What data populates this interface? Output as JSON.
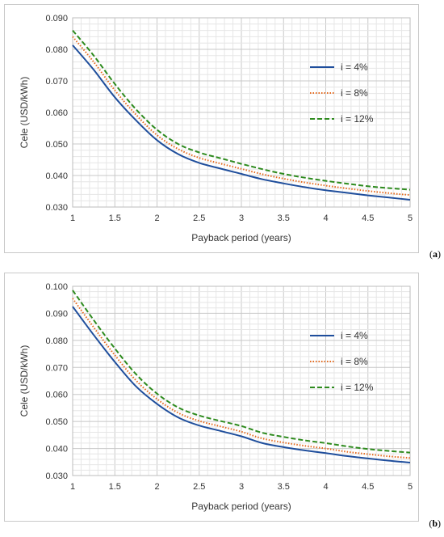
{
  "chart_data": [
    {
      "type": "line",
      "panel_label": "a",
      "xlabel": "Payback period (years)",
      "ylabel": "Cele (USD/kWh)",
      "xlim": [
        1,
        5
      ],
      "ylim": [
        0.03,
        0.09
      ],
      "xticks": [
        "1",
        "1.5",
        "2",
        "2.5",
        "3",
        "3.5",
        "4",
        "4.5",
        "5"
      ],
      "yticks": [
        "0.030",
        "0.040",
        "0.050",
        "0.060",
        "0.070",
        "0.080",
        "0.090"
      ],
      "grid": true,
      "legend_position": "right",
      "x": [
        1,
        1.25,
        1.5,
        1.75,
        2,
        2.25,
        2.5,
        2.75,
        3,
        3.25,
        3.5,
        3.75,
        4,
        4.25,
        4.5,
        4.75,
        5
      ],
      "series": [
        {
          "name": "i = 4%",
          "color": "#1f4e9c",
          "style": "solid",
          "values": [
            0.0813,
            0.0735,
            0.0648,
            0.0575,
            0.0512,
            0.0468,
            0.044,
            0.0422,
            0.0405,
            0.0388,
            0.0375,
            0.0363,
            0.0353,
            0.0345,
            0.0337,
            0.033,
            0.0323
          ]
        },
        {
          "name": "i = 8%",
          "color": "#e66b1f",
          "style": "dotted",
          "values": [
            0.084,
            0.076,
            0.067,
            0.0593,
            0.0528,
            0.0484,
            0.0456,
            0.0438,
            0.0421,
            0.0404,
            0.039,
            0.0378,
            0.0368,
            0.0359,
            0.0351,
            0.0344,
            0.0338
          ]
        },
        {
          "name": "i = 12%",
          "color": "#2e8b1e",
          "style": "dashed",
          "values": [
            0.086,
            0.078,
            0.069,
            0.061,
            0.0545,
            0.05,
            0.0473,
            0.0455,
            0.0437,
            0.042,
            0.0405,
            0.0393,
            0.0383,
            0.0374,
            0.0366,
            0.036,
            0.0355
          ]
        }
      ]
    },
    {
      "type": "line",
      "panel_label": "b",
      "xlabel": "Payback period (years)",
      "ylabel": "Cele (USD/kWh)",
      "xlim": [
        1,
        5
      ],
      "ylim": [
        0.03,
        0.1
      ],
      "xticks": [
        "1",
        "1.5",
        "2",
        "2.5",
        "3",
        "3.5",
        "4",
        "4.5",
        "5"
      ],
      "yticks": [
        "0.030",
        "0.040",
        "0.050",
        "0.060",
        "0.070",
        "0.080",
        "0.090",
        "0.100"
      ],
      "grid": true,
      "legend_position": "right",
      "x": [
        1,
        1.25,
        1.5,
        1.75,
        2,
        2.25,
        2.5,
        2.75,
        3,
        3.25,
        3.5,
        3.75,
        4,
        4.25,
        4.5,
        4.75,
        5
      ],
      "series": [
        {
          "name": "i = 4%",
          "color": "#1f4e9c",
          "style": "solid",
          "values": [
            0.0925,
            0.082,
            0.072,
            0.063,
            0.0565,
            0.0515,
            0.0485,
            0.0465,
            0.0445,
            0.042,
            0.0405,
            0.0393,
            0.0383,
            0.0372,
            0.0363,
            0.0355,
            0.0348
          ]
        },
        {
          "name": "i = 8%",
          "color": "#e66b1f",
          "style": "dotted",
          "values": [
            0.0955,
            0.0848,
            0.0745,
            0.0652,
            0.0583,
            0.0532,
            0.0502,
            0.0482,
            0.0462,
            0.0437,
            0.0422,
            0.041,
            0.04,
            0.0388,
            0.0379,
            0.0371,
            0.0365
          ]
        },
        {
          "name": "i = 12%",
          "color": "#2e8b1e",
          "style": "dashed",
          "values": [
            0.0985,
            0.0875,
            0.077,
            0.0675,
            0.0603,
            0.0552,
            0.0522,
            0.0502,
            0.0483,
            0.0458,
            0.0443,
            0.043,
            0.042,
            0.0408,
            0.0398,
            0.0391,
            0.0385
          ]
        }
      ]
    }
  ]
}
